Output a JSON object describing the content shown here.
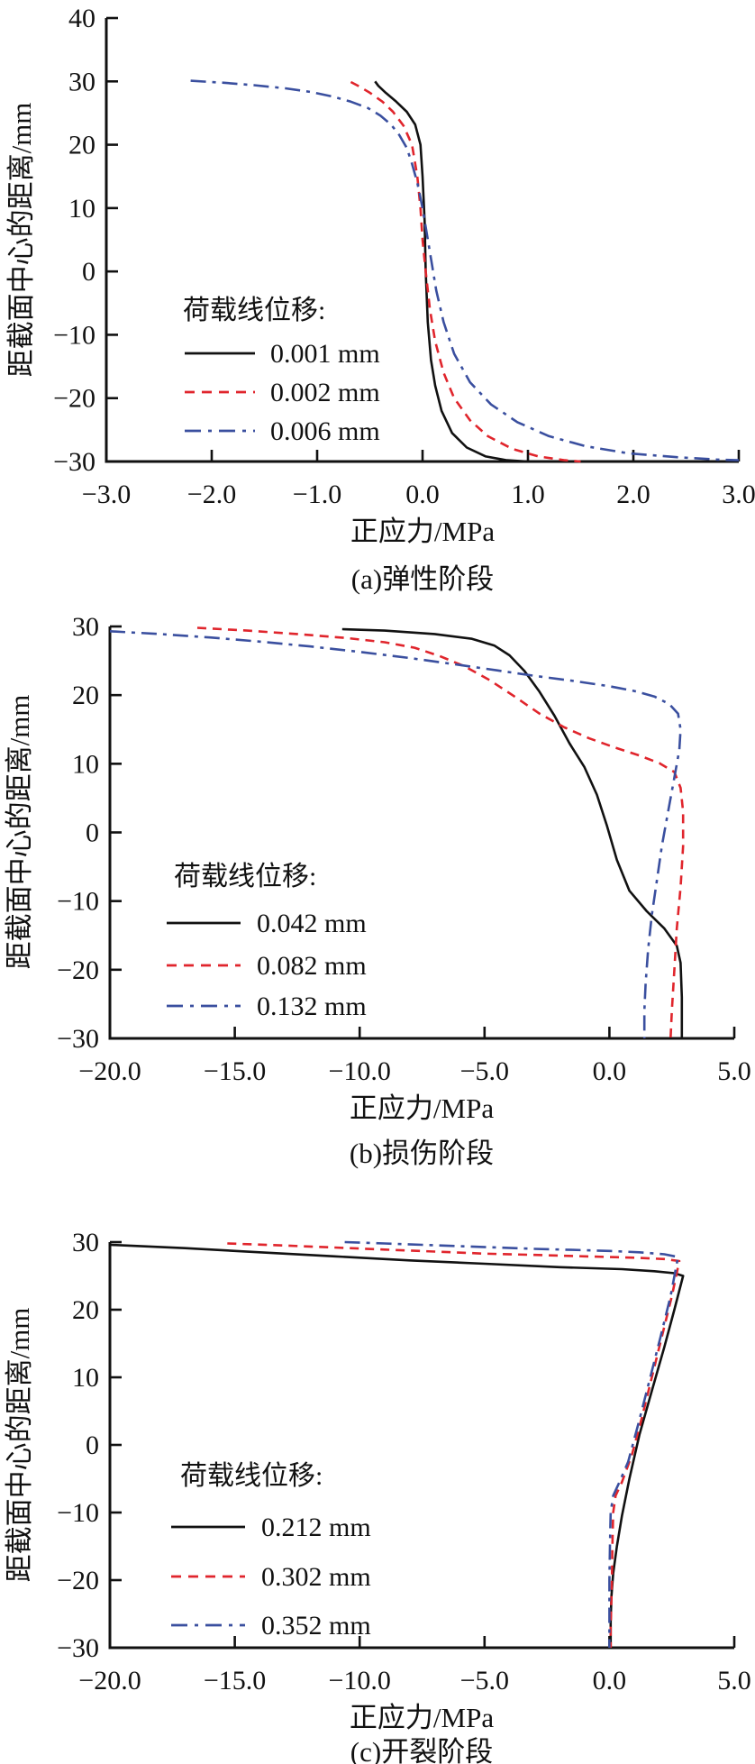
{
  "figure": {
    "ylabel": "距截面中心的距离/mm",
    "xlabel": "正应力/MPa",
    "legend_title": "荷载线位移:",
    "colors": {
      "black": "#111111",
      "red": "#e0252c",
      "blue": "#3a4f9f"
    }
  },
  "chart_data": [
    {
      "type": "line",
      "title": "(a)弹性阶段",
      "xlabel": "正应力/MPa",
      "ylabel": "距截面中心的距离/mm",
      "xlim": [
        -3,
        3
      ],
      "ylim": [
        -30,
        40
      ],
      "grid": false,
      "legend_title": "荷载线位移:",
      "legend_position": "lower-left-inside",
      "xticks": [
        {
          "label": "−3.0",
          "v": -3
        },
        {
          "label": "−2.0",
          "v": -2
        },
        {
          "label": "−1.0",
          "v": -1
        },
        {
          "label": "0.0",
          "v": 0
        },
        {
          "label": "1.0",
          "v": 1
        },
        {
          "label": "2.0",
          "v": 2
        },
        {
          "label": "3.0",
          "v": 3
        }
      ],
      "yticks": [
        {
          "label": "40",
          "v": 40
        },
        {
          "label": "30",
          "v": 30
        },
        {
          "label": "20",
          "v": 20
        },
        {
          "label": "10",
          "v": 10
        },
        {
          "label": "0",
          "v": 0
        },
        {
          "label": "−10",
          "v": -10
        },
        {
          "label": "−20",
          "v": -20
        },
        {
          "label": "−30",
          "v": -30
        }
      ],
      "series": [
        {
          "name": "0.001 mm",
          "color": "#111111",
          "dash": "solid",
          "points": [
            [
              -0.45,
              30.0
            ],
            [
              -0.42,
              29.3
            ],
            [
              -0.35,
              28.2
            ],
            [
              -0.25,
              26.8
            ],
            [
              -0.15,
              25.2
            ],
            [
              -0.07,
              23.2
            ],
            [
              -0.02,
              20.0
            ],
            [
              0.0,
              15.0
            ],
            [
              0.02,
              8.0
            ],
            [
              0.03,
              0.0
            ],
            [
              0.05,
              -8.0
            ],
            [
              0.08,
              -14.0
            ],
            [
              0.12,
              -18.0
            ],
            [
              0.18,
              -22.0
            ],
            [
              0.28,
              -25.5
            ],
            [
              0.42,
              -27.8
            ],
            [
              0.6,
              -29.2
            ],
            [
              0.8,
              -29.8
            ],
            [
              1.0,
              -30.0
            ]
          ]
        },
        {
          "name": "0.002 mm",
          "color": "#e0252c",
          "dash": "dashed",
          "points": [
            [
              -0.68,
              29.9
            ],
            [
              -0.6,
              29.2
            ],
            [
              -0.5,
              28.2
            ],
            [
              -0.38,
              26.8
            ],
            [
              -0.28,
              25.2
            ],
            [
              -0.18,
              23.0
            ],
            [
              -0.1,
              20.0
            ],
            [
              -0.05,
              15.0
            ],
            [
              -0.02,
              10.0
            ],
            [
              0.0,
              5.0
            ],
            [
              0.03,
              0.0
            ],
            [
              0.07,
              -6.0
            ],
            [
              0.12,
              -11.0
            ],
            [
              0.2,
              -16.0
            ],
            [
              0.3,
              -20.0
            ],
            [
              0.45,
              -23.5
            ],
            [
              0.62,
              -26.0
            ],
            [
              0.85,
              -28.0
            ],
            [
              1.1,
              -29.2
            ],
            [
              1.35,
              -29.8
            ],
            [
              1.5,
              -30.0
            ]
          ]
        },
        {
          "name": "0.006 mm",
          "color": "#3a4f9f",
          "dash": "dashdot",
          "points": [
            [
              -2.2,
              30.1
            ],
            [
              -1.9,
              29.8
            ],
            [
              -1.6,
              29.4
            ],
            [
              -1.3,
              28.9
            ],
            [
              -1.05,
              28.3
            ],
            [
              -0.85,
              27.6
            ],
            [
              -0.68,
              26.8
            ],
            [
              -0.52,
              25.8
            ],
            [
              -0.4,
              24.6
            ],
            [
              -0.3,
              23.2
            ],
            [
              -0.22,
              21.5
            ],
            [
              -0.15,
              19.5
            ],
            [
              -0.1,
              17.0
            ],
            [
              -0.05,
              14.0
            ],
            [
              0.0,
              10.0
            ],
            [
              0.04,
              6.0
            ],
            [
              0.08,
              2.0
            ],
            [
              0.13,
              -3.0
            ],
            [
              0.2,
              -8.0
            ],
            [
              0.3,
              -13.0
            ],
            [
              0.45,
              -17.5
            ],
            [
              0.65,
              -21.0
            ],
            [
              0.9,
              -23.8
            ],
            [
              1.2,
              -26.0
            ],
            [
              1.55,
              -27.6
            ],
            [
              1.95,
              -28.7
            ],
            [
              2.4,
              -29.3
            ],
            [
              2.8,
              -29.7
            ],
            [
              3.0,
              -29.8
            ]
          ]
        }
      ]
    },
    {
      "type": "line",
      "title": "(b)损伤阶段",
      "xlabel": "正应力/MPa",
      "ylabel": "距截面中心的距离/mm",
      "xlim": [
        -20,
        5
      ],
      "ylim": [
        -30,
        30
      ],
      "grid": false,
      "legend_title": "荷载线位移:",
      "legend_position": "lower-left-inside",
      "xticks": [
        {
          "label": "−20.0",
          "v": -20
        },
        {
          "label": "−15.0",
          "v": -15
        },
        {
          "label": "−10.0",
          "v": -10
        },
        {
          "label": "−5.0",
          "v": -5
        },
        {
          "label": "0.0",
          "v": 0
        },
        {
          "label": "5.0",
          "v": 5
        }
      ],
      "yticks": [
        {
          "label": "30",
          "v": 30
        },
        {
          "label": "20",
          "v": 20
        },
        {
          "label": "10",
          "v": 10
        },
        {
          "label": "0",
          "v": 0
        },
        {
          "label": "−10",
          "v": -10
        },
        {
          "label": "−20",
          "v": -20
        },
        {
          "label": "−30",
          "v": -30
        }
      ],
      "series": [
        {
          "name": "0.042 mm",
          "color": "#111111",
          "dash": "solid",
          "points": [
            [
              -10.7,
              29.6
            ],
            [
              -9.0,
              29.4
            ],
            [
              -7.0,
              28.9
            ],
            [
              -5.5,
              28.2
            ],
            [
              -4.6,
              27.2
            ],
            [
              -4.0,
              25.8
            ],
            [
              -3.4,
              23.5
            ],
            [
              -2.8,
              20.5
            ],
            [
              -2.2,
              17.0
            ],
            [
              -1.6,
              13.0
            ],
            [
              -1.0,
              9.5
            ],
            [
              -0.5,
              5.5
            ],
            [
              -0.1,
              1.0
            ],
            [
              0.3,
              -4.0
            ],
            [
              0.8,
              -8.5
            ],
            [
              1.5,
              -11.5
            ],
            [
              2.2,
              -14.0
            ],
            [
              2.7,
              -16.5
            ],
            [
              2.85,
              -19.0
            ],
            [
              2.9,
              -24.0
            ],
            [
              2.9,
              -30.0
            ]
          ]
        },
        {
          "name": "0.082 mm",
          "color": "#e0252c",
          "dash": "dashed",
          "points": [
            [
              -16.5,
              29.8
            ],
            [
              -14.5,
              29.4
            ],
            [
              -12.5,
              28.9
            ],
            [
              -10.5,
              28.3
            ],
            [
              -9.0,
              27.7
            ],
            [
              -7.8,
              26.9
            ],
            [
              -6.8,
              25.7
            ],
            [
              -5.8,
              24.2
            ],
            [
              -4.8,
              22.2
            ],
            [
              -3.8,
              19.8
            ],
            [
              -2.8,
              17.3
            ],
            [
              -1.8,
              15.3
            ],
            [
              -0.8,
              13.7
            ],
            [
              0.2,
              12.4
            ],
            [
              1.2,
              11.2
            ],
            [
              2.0,
              10.1
            ],
            [
              2.6,
              8.8
            ],
            [
              2.85,
              6.5
            ],
            [
              2.95,
              3.0
            ],
            [
              2.95,
              -2.0
            ],
            [
              2.85,
              -8.0
            ],
            [
              2.7,
              -14.0
            ],
            [
              2.6,
              -20.0
            ],
            [
              2.5,
              -26.0
            ],
            [
              2.45,
              -30.0
            ]
          ]
        },
        {
          "name": "0.132 mm",
          "color": "#3a4f9f",
          "dash": "dashdot",
          "points": [
            [
              -20.0,
              29.3
            ],
            [
              -18.0,
              28.9
            ],
            [
              -16.0,
              28.4
            ],
            [
              -14.0,
              27.8
            ],
            [
              -12.0,
              27.1
            ],
            [
              -10.0,
              26.3
            ],
            [
              -8.0,
              25.4
            ],
            [
              -6.0,
              24.4
            ],
            [
              -4.5,
              23.6
            ],
            [
              -3.0,
              22.8
            ],
            [
              -1.5,
              22.1
            ],
            [
              0.0,
              21.3
            ],
            [
              1.0,
              20.6
            ],
            [
              1.8,
              19.8
            ],
            [
              2.4,
              18.7
            ],
            [
              2.75,
              17.3
            ],
            [
              2.85,
              15.0
            ],
            [
              2.8,
              12.0
            ],
            [
              2.6,
              8.0
            ],
            [
              2.35,
              3.0
            ],
            [
              2.1,
              -2.0
            ],
            [
              1.9,
              -7.0
            ],
            [
              1.7,
              -12.0
            ],
            [
              1.55,
              -17.0
            ],
            [
              1.45,
              -22.0
            ],
            [
              1.4,
              -26.0
            ],
            [
              1.4,
              -30.0
            ]
          ]
        }
      ]
    },
    {
      "type": "line",
      "title": "(c)开裂阶段",
      "xlabel": "正应力/MPa",
      "ylabel": "距截面中心的距离/mm",
      "xlim": [
        -20,
        5
      ],
      "ylim": [
        -30,
        30
      ],
      "grid": false,
      "legend_title": "荷载线位移:",
      "legend_position": "lower-left-inside",
      "xticks": [
        {
          "label": "−20.0",
          "v": -20
        },
        {
          "label": "−15.0",
          "v": -15
        },
        {
          "label": "−10.0",
          "v": -10
        },
        {
          "label": "−5.0",
          "v": -5
        },
        {
          "label": "0.0",
          "v": 0
        },
        {
          "label": "5.0",
          "v": 5
        }
      ],
      "yticks": [
        {
          "label": "30",
          "v": 30
        },
        {
          "label": "20",
          "v": 20
        },
        {
          "label": "10",
          "v": 10
        },
        {
          "label": "0",
          "v": 0
        },
        {
          "label": "−10",
          "v": -10
        },
        {
          "label": "−20",
          "v": -20
        },
        {
          "label": "−30",
          "v": -30
        }
      ],
      "series": [
        {
          "name": "0.212 mm",
          "color": "#111111",
          "dash": "solid",
          "points": [
            [
              -20.0,
              29.6
            ],
            [
              -17.0,
              29.1
            ],
            [
              -14.0,
              28.5
            ],
            [
              -11.0,
              27.9
            ],
            [
              -8.0,
              27.3
            ],
            [
              -5.0,
              26.8
            ],
            [
              -2.0,
              26.3
            ],
            [
              0.5,
              26.0
            ],
            [
              1.8,
              25.7
            ],
            [
              2.6,
              25.4
            ],
            [
              2.95,
              25.0
            ],
            [
              2.6,
              20.0
            ],
            [
              2.2,
              14.5
            ],
            [
              1.7,
              8.0
            ],
            [
              1.2,
              1.5
            ],
            [
              0.8,
              -5.0
            ],
            [
              0.5,
              -10.5
            ],
            [
              0.3,
              -15.0
            ],
            [
              0.15,
              -19.0
            ],
            [
              0.08,
              -22.5
            ],
            [
              0.05,
              -26.0
            ],
            [
              0.05,
              -30.0
            ]
          ]
        },
        {
          "name": "0.302 mm",
          "color": "#e0252c",
          "dash": "dashed",
          "points": [
            [
              -15.3,
              29.8
            ],
            [
              -13.0,
              29.5
            ],
            [
              -11.0,
              29.2
            ],
            [
              -9.0,
              28.9
            ],
            [
              -7.0,
              28.6
            ],
            [
              -5.0,
              28.3
            ],
            [
              -3.0,
              28.1
            ],
            [
              -1.0,
              27.9
            ],
            [
              1.0,
              27.7
            ],
            [
              2.2,
              27.5
            ],
            [
              2.8,
              27.2
            ],
            [
              2.5,
              22.0
            ],
            [
              2.1,
              16.0
            ],
            [
              1.7,
              10.0
            ],
            [
              1.3,
              4.0
            ],
            [
              0.9,
              -1.5
            ],
            [
              0.5,
              -5.5
            ],
            [
              0.25,
              -7.5
            ],
            [
              0.15,
              -10.0
            ],
            [
              0.12,
              -15.0
            ],
            [
              0.1,
              -20.0
            ],
            [
              0.08,
              -23.0
            ],
            [
              0.05,
              -27.0
            ],
            [
              0.05,
              -30.0
            ]
          ]
        },
        {
          "name": "0.352 mm",
          "color": "#3a4f9f",
          "dash": "dashdot",
          "points": [
            [
              -10.6,
              30.0
            ],
            [
              -9.0,
              29.8
            ],
            [
              -7.5,
              29.6
            ],
            [
              -6.0,
              29.4
            ],
            [
              -4.5,
              29.2
            ],
            [
              -3.0,
              29.0
            ],
            [
              -1.5,
              28.85
            ],
            [
              0.0,
              28.7
            ],
            [
              1.2,
              28.5
            ],
            [
              2.2,
              28.2
            ],
            [
              2.75,
              27.8
            ],
            [
              2.45,
              22.0
            ],
            [
              2.05,
              16.0
            ],
            [
              1.6,
              9.5
            ],
            [
              1.15,
              3.0
            ],
            [
              0.75,
              -2.5
            ],
            [
              0.4,
              -5.5
            ],
            [
              0.15,
              -7.5
            ],
            [
              0.05,
              -10.0
            ],
            [
              0.02,
              -15.0
            ],
            [
              0.0,
              -20.0
            ],
            [
              0.0,
              -25.0
            ],
            [
              0.0,
              -30.0
            ]
          ]
        }
      ]
    }
  ]
}
